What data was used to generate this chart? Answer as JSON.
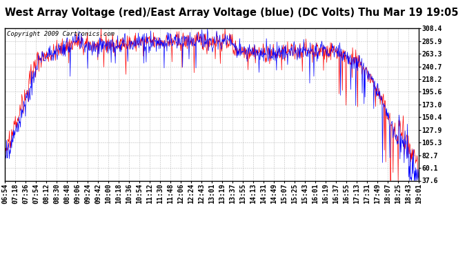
{
  "title": "West Array Voltage (red)/East Array Voltage (blue) (DC Volts) Thu Mar 19 19:05",
  "copyright": "Copyright 2009 Cartronics.com",
  "ylabel_values": [
    308.4,
    285.9,
    263.3,
    240.7,
    218.2,
    195.6,
    173.0,
    150.4,
    127.9,
    105.3,
    82.7,
    60.1,
    37.6
  ],
  "x_labels": [
    "06:54",
    "07:18",
    "07:36",
    "07:54",
    "08:12",
    "08:30",
    "08:48",
    "09:06",
    "09:24",
    "09:42",
    "10:00",
    "10:18",
    "10:36",
    "10:54",
    "11:12",
    "11:30",
    "11:48",
    "12:06",
    "12:24",
    "12:43",
    "13:01",
    "13:19",
    "13:37",
    "13:55",
    "14:13",
    "14:31",
    "14:49",
    "15:07",
    "15:25",
    "15:43",
    "16:01",
    "16:19",
    "16:37",
    "16:55",
    "17:13",
    "17:31",
    "17:49",
    "18:07",
    "18:25",
    "18:43",
    "19:01"
  ],
  "ymin": 37.6,
  "ymax": 308.4,
  "background_color": "#ffffff",
  "plot_bg_color": "#ffffff",
  "grid_color": "#bbbbbb",
  "red_color": "#ff0000",
  "blue_color": "#0000ff",
  "title_fontsize": 10.5,
  "tick_fontsize": 7,
  "copyright_fontsize": 6.5
}
